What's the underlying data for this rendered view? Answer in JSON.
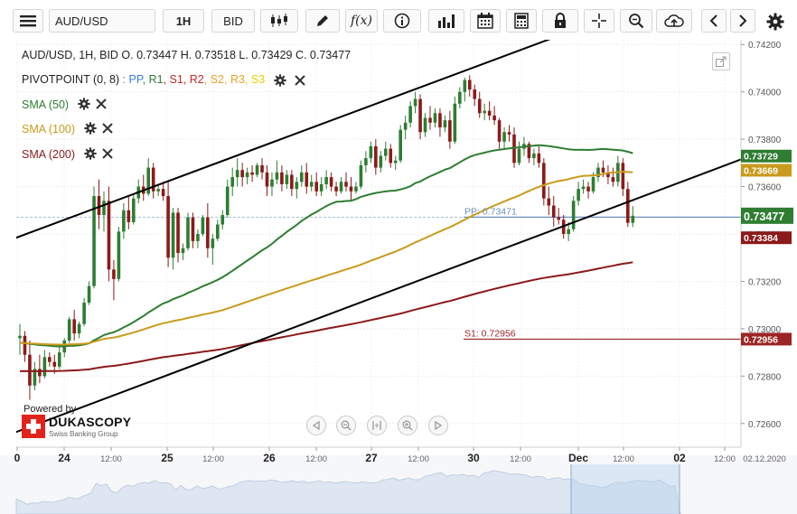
{
  "toolbar": {
    "symbol": "AUD/USD",
    "timeframe": "1H",
    "side": "BID",
    "icons": [
      "menu-icon",
      "candlestick-icon",
      "draw-pencil-icon",
      "function-icon",
      "info-icon",
      "bar-chart-icon",
      "calendar-icon",
      "calculator-icon",
      "lock-icon",
      "crosshair-icon",
      "zoom-icon",
      "cloud-upload-icon",
      "arrow-left-icon",
      "arrow-right-icon",
      "gear-icon"
    ]
  },
  "legend": {
    "ohlc_text": "AUD/USD, 1H, BID    O. 0.73447 H. 0.73518 L. 0.73429 C. 0.73477",
    "pivot_label": "PIVOTPOINT (0, 8)",
    "pivot_items": [
      {
        "text": ": PP",
        "color": "#3a7bd5"
      },
      {
        "text": ", R1",
        "color": "#2e7d32"
      },
      {
        "text": ", S1",
        "color": "#c62828"
      },
      {
        "text": ", R2",
        "color": "#c62828"
      },
      {
        "text": ", S2",
        "color": "#e6a22a"
      },
      {
        "text": ", R3",
        "color": "#e6a22a"
      },
      {
        "text": ", S3",
        "color": "#e8d000"
      }
    ],
    "sma": [
      {
        "label": "SMA (50)",
        "color": "#2e7d32"
      },
      {
        "label": "SMA (100)",
        "color": "#c99a1c"
      },
      {
        "label": "SMA (200)",
        "color": "#8b1a1a"
      }
    ]
  },
  "branding": {
    "powered": "Powered by",
    "name": "DUKASCOPY",
    "sub": "Swiss Banking Group"
  },
  "colors": {
    "bull": "#2e7d32",
    "bear": "#8b1a1a",
    "sma50": "#2e7d32",
    "sma100": "#c99a1c",
    "sma200": "#8b1a1a",
    "pp": "#6b8fc0",
    "s1": "#9c2525"
  },
  "chart_data": {
    "type": "candlestick",
    "title": "AUD/USD, 1H, BID",
    "ylim": [
      0.725,
      0.7422
    ],
    "y_ticks": [
      "0.74200",
      "0.74000",
      "0.73800",
      "0.73600",
      "0.73400",
      "0.73200",
      "0.73000",
      "0.72800",
      "0.72600"
    ],
    "x_ticks": [
      "0",
      "24",
      "12:00",
      "25",
      "12:00",
      "26",
      "12:00",
      "27",
      "12:00",
      "30",
      "12:00",
      "Dec",
      "12:00",
      "02",
      "12:00",
      "02.12.2020"
    ],
    "current_price": {
      "label": "0.73477",
      "value": 0.73477
    },
    "price_labels": [
      {
        "value": 0.73729,
        "label": "0.73729",
        "color": "#2e7d32"
      },
      {
        "value": 0.73669,
        "label": "0.73669",
        "color": "#c99a1c"
      },
      {
        "value": 0.73384,
        "label": "0.73384",
        "color": "#8b1a1a"
      },
      {
        "value": 0.72956,
        "label": "0.72956",
        "color": "#9c2525"
      }
    ],
    "pivot_levels": [
      {
        "name": "PP",
        "value": 0.73471,
        "label": "PP: 0.73471"
      },
      {
        "name": "S1",
        "value": 0.72956,
        "label": "S1: 0.72956"
      }
    ],
    "trend_lines": [
      {
        "name": "channel-top",
        "points": [
          [
            0.0,
            0.7339
          ],
          [
            112.0,
            0.7426
          ]
        ]
      },
      {
        "name": "channel-bottom",
        "points": [
          [
            0.0,
            0.7257
          ],
          [
            144.0,
            0.737
          ]
        ]
      }
    ],
    "candles": [
      [
        0.7296,
        0.7302,
        0.7289,
        0.7297
      ],
      [
        0.7297,
        0.7299,
        0.7286,
        0.7289
      ],
      [
        0.7289,
        0.7295,
        0.727,
        0.7276
      ],
      [
        0.7276,
        0.7286,
        0.7274,
        0.7283
      ],
      [
        0.7283,
        0.7289,
        0.7277,
        0.728
      ],
      [
        0.728,
        0.7291,
        0.7279,
        0.7288
      ],
      [
        0.7288,
        0.729,
        0.7284,
        0.7286
      ],
      [
        0.7286,
        0.7289,
        0.7281,
        0.7284
      ],
      [
        0.7284,
        0.7293,
        0.7283,
        0.729
      ],
      [
        0.729,
        0.7296,
        0.7288,
        0.7295
      ],
      [
        0.7295,
        0.7305,
        0.7294,
        0.7304
      ],
      [
        0.7304,
        0.7308,
        0.7295,
        0.7298
      ],
      [
        0.7298,
        0.7303,
        0.7296,
        0.7302
      ],
      [
        0.7302,
        0.7313,
        0.7301,
        0.7311
      ],
      [
        0.7311,
        0.732,
        0.731,
        0.7318
      ],
      [
        0.7318,
        0.736,
        0.7317,
        0.7356
      ],
      [
        0.7356,
        0.7363,
        0.7342,
        0.7348
      ],
      [
        0.7348,
        0.7358,
        0.7341,
        0.7354
      ],
      [
        0.7354,
        0.736,
        0.732,
        0.7325
      ],
      [
        0.7325,
        0.7329,
        0.7312,
        0.7321
      ],
      [
        0.7321,
        0.7343,
        0.732,
        0.7341
      ],
      [
        0.7341,
        0.7353,
        0.7338,
        0.735
      ],
      [
        0.735,
        0.7356,
        0.7342,
        0.7345
      ],
      [
        0.7345,
        0.7357,
        0.7344,
        0.7355
      ],
      [
        0.7355,
        0.7363,
        0.7353,
        0.736
      ],
      [
        0.736,
        0.7365,
        0.7354,
        0.7357
      ],
      [
        0.7357,
        0.7372,
        0.7356,
        0.7368
      ],
      [
        0.7368,
        0.737,
        0.7355,
        0.7358
      ],
      [
        0.7358,
        0.7361,
        0.7356,
        0.7359
      ],
      [
        0.7359,
        0.7362,
        0.7354,
        0.7356
      ],
      [
        0.7356,
        0.7362,
        0.7326,
        0.733
      ],
      [
        0.733,
        0.7351,
        0.7325,
        0.7349
      ],
      [
        0.7349,
        0.7351,
        0.7328,
        0.7332
      ],
      [
        0.7332,
        0.7336,
        0.7329,
        0.7334
      ],
      [
        0.7334,
        0.7349,
        0.7333,
        0.7347
      ],
      [
        0.7347,
        0.7349,
        0.7334,
        0.7337
      ],
      [
        0.7337,
        0.7342,
        0.7334,
        0.734
      ],
      [
        0.734,
        0.7348,
        0.7339,
        0.7347
      ],
      [
        0.7347,
        0.7353,
        0.733,
        0.7334
      ],
      [
        0.7334,
        0.734,
        0.7327,
        0.7338
      ],
      [
        0.7338,
        0.7346,
        0.7337,
        0.7344
      ],
      [
        0.7344,
        0.735,
        0.7342,
        0.7348
      ],
      [
        0.7348,
        0.7363,
        0.7347,
        0.736
      ],
      [
        0.736,
        0.7368,
        0.7356,
        0.7364
      ],
      [
        0.7364,
        0.7372,
        0.736,
        0.7367
      ],
      [
        0.7367,
        0.737,
        0.736,
        0.7364
      ],
      [
        0.7364,
        0.7368,
        0.7361,
        0.7366
      ],
      [
        0.7366,
        0.7369,
        0.7362,
        0.7365
      ],
      [
        0.7365,
        0.737,
        0.7364,
        0.7369
      ],
      [
        0.7369,
        0.7372,
        0.7363,
        0.7366
      ],
      [
        0.7366,
        0.7369,
        0.7356,
        0.736
      ],
      [
        0.736,
        0.7366,
        0.7356,
        0.7363
      ],
      [
        0.7363,
        0.7371,
        0.7361,
        0.7366
      ],
      [
        0.7366,
        0.7369,
        0.7358,
        0.7361
      ],
      [
        0.7361,
        0.7367,
        0.7359,
        0.7365
      ],
      [
        0.7365,
        0.7367,
        0.7356,
        0.7359
      ],
      [
        0.7359,
        0.7364,
        0.7355,
        0.7362
      ],
      [
        0.7362,
        0.7369,
        0.736,
        0.7366
      ],
      [
        0.7366,
        0.737,
        0.7357,
        0.736
      ],
      [
        0.736,
        0.7365,
        0.7358,
        0.7362
      ],
      [
        0.7362,
        0.7366,
        0.7356,
        0.7358
      ],
      [
        0.7358,
        0.7364,
        0.7356,
        0.7361
      ],
      [
        0.7361,
        0.7367,
        0.7359,
        0.7364
      ],
      [
        0.7364,
        0.7366,
        0.7358,
        0.736
      ],
      [
        0.736,
        0.7362,
        0.7356,
        0.7358
      ],
      [
        0.7358,
        0.7364,
        0.7357,
        0.7362
      ],
      [
        0.7362,
        0.7366,
        0.7358,
        0.736
      ],
      [
        0.736,
        0.7364,
        0.7354,
        0.7358
      ],
      [
        0.7358,
        0.7362,
        0.7357,
        0.736
      ],
      [
        0.736,
        0.7371,
        0.7359,
        0.7369
      ],
      [
        0.7369,
        0.7375,
        0.7366,
        0.7372
      ],
      [
        0.7372,
        0.7379,
        0.737,
        0.7377
      ],
      [
        0.7377,
        0.738,
        0.7365,
        0.7368
      ],
      [
        0.7368,
        0.7375,
        0.7366,
        0.7373
      ],
      [
        0.7373,
        0.7379,
        0.7371,
        0.7376
      ],
      [
        0.7376,
        0.7378,
        0.7368,
        0.737
      ],
      [
        0.737,
        0.7373,
        0.7367,
        0.7371
      ],
      [
        0.7371,
        0.7386,
        0.737,
        0.7384
      ],
      [
        0.7384,
        0.739,
        0.738,
        0.7387
      ],
      [
        0.7387,
        0.7396,
        0.7385,
        0.7394
      ],
      [
        0.7394,
        0.74,
        0.7391,
        0.7397
      ],
      [
        0.7397,
        0.7399,
        0.738,
        0.7383
      ],
      [
        0.7383,
        0.7391,
        0.7381,
        0.7389
      ],
      [
        0.7389,
        0.7394,
        0.7384,
        0.7387
      ],
      [
        0.7387,
        0.7393,
        0.7385,
        0.7391
      ],
      [
        0.7391,
        0.7393,
        0.7381,
        0.7385
      ],
      [
        0.7385,
        0.739,
        0.7383,
        0.7388
      ],
      [
        0.7388,
        0.7392,
        0.7376,
        0.7379
      ],
      [
        0.7379,
        0.7398,
        0.7378,
        0.7395
      ],
      [
        0.7395,
        0.7402,
        0.7393,
        0.74
      ],
      [
        0.74,
        0.7406,
        0.7396,
        0.7405
      ],
      [
        0.7405,
        0.7407,
        0.7398,
        0.7401
      ],
      [
        0.7401,
        0.7403,
        0.7394,
        0.7397
      ],
      [
        0.7397,
        0.74,
        0.7389,
        0.7391
      ],
      [
        0.7391,
        0.7395,
        0.7388,
        0.7392
      ],
      [
        0.7392,
        0.7396,
        0.7388,
        0.739
      ],
      [
        0.739,
        0.7394,
        0.7386,
        0.7388
      ],
      [
        0.7388,
        0.7389,
        0.7376,
        0.7379
      ],
      [
        0.7379,
        0.7385,
        0.7376,
        0.7383
      ],
      [
        0.7383,
        0.7386,
        0.7379,
        0.7382
      ],
      [
        0.7382,
        0.7385,
        0.7368,
        0.737
      ],
      [
        0.737,
        0.7379,
        0.7369,
        0.7376
      ],
      [
        0.7376,
        0.7381,
        0.7373,
        0.7378
      ],
      [
        0.7378,
        0.7379,
        0.737,
        0.7372
      ],
      [
        0.7372,
        0.7376,
        0.7369,
        0.7374
      ],
      [
        0.7374,
        0.7377,
        0.7368,
        0.737
      ],
      [
        0.737,
        0.7372,
        0.7352,
        0.7355
      ],
      [
        0.7355,
        0.736,
        0.7348,
        0.7352
      ],
      [
        0.7352,
        0.7356,
        0.7343,
        0.7347
      ],
      [
        0.7347,
        0.7351,
        0.7344,
        0.7346
      ],
      [
        0.7346,
        0.7348,
        0.7338,
        0.734
      ],
      [
        0.734,
        0.7345,
        0.7337,
        0.7342
      ],
      [
        0.7342,
        0.7356,
        0.7341,
        0.7354
      ],
      [
        0.7354,
        0.7362,
        0.7352,
        0.7359
      ],
      [
        0.7359,
        0.7363,
        0.7357,
        0.736
      ],
      [
        0.736,
        0.7362,
        0.7355,
        0.7358
      ],
      [
        0.7358,
        0.7366,
        0.7357,
        0.7364
      ],
      [
        0.7364,
        0.737,
        0.7362,
        0.7368
      ],
      [
        0.7368,
        0.7371,
        0.7364,
        0.7366
      ],
      [
        0.7366,
        0.7369,
        0.7361,
        0.7364
      ],
      [
        0.7364,
        0.7368,
        0.736,
        0.7362
      ],
      [
        0.7362,
        0.7373,
        0.736,
        0.737
      ],
      [
        0.737,
        0.7372,
        0.7356,
        0.7359
      ],
      [
        0.7359,
        0.7362,
        0.7343,
        0.73447
      ],
      [
        0.73447,
        0.73518,
        0.73429,
        0.73477
      ]
    ]
  }
}
